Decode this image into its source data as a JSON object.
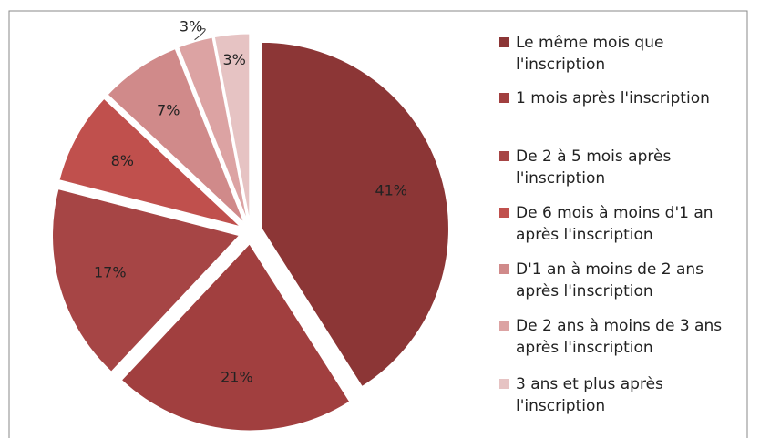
{
  "chart_data": {
    "type": "pie",
    "categories": [
      "Le même mois que l'inscription",
      "1 mois après l'inscription",
      "De 2 à 5 mois après l'inscription",
      "De 6 mois à moins d'1 an après l'inscription",
      "D'1 an à moins de 2 ans après l'inscription",
      "De 2 ans à moins de 3 ans après l'inscription",
      "3 ans et plus après l'inscription"
    ],
    "values": [
      41,
      21,
      17,
      8,
      7,
      3,
      3
    ],
    "value_labels": [
      "41%",
      "21%",
      "17%",
      "8%",
      "7%",
      "3%",
      "3%"
    ],
    "colors": [
      "#8c3636",
      "#a13f3f",
      "#a64545",
      "#c0504d",
      "#d08a8a",
      "#dca3a3",
      "#e6c3c3"
    ],
    "legend": "right"
  }
}
